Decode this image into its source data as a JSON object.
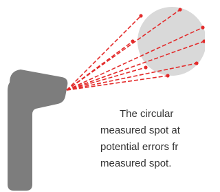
{
  "text": {
    "lines": [
      "The circular",
      "measured spot at",
      "potential errors fr",
      "measured spot."
    ]
  }
}
